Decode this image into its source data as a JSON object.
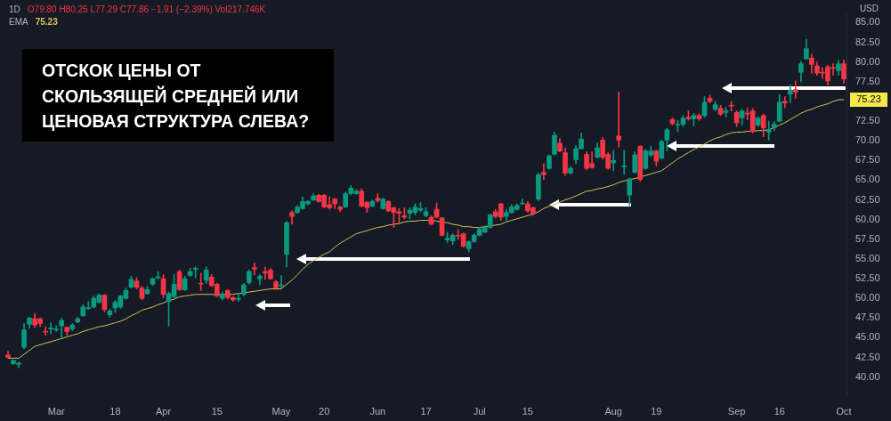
{
  "chart_data": {
    "type": "candlestick",
    "title": "ОТСКОК ЦЕНЫ ОТ СКОЛЬЗЯЩЕЙ СРЕДНЕЙ ИЛИ ЦЕНОВАЯ СТРУКТУРА СЛЕВА?",
    "annotations": [
      "1D",
      "O79.80 H80.25 L77.29 C77.86 −1.91 (−2.39%) Vol217.746K",
      "75.23",
      "USD",
      "75.23"
    ],
    "categories": [
      null,
      null,
      null,
      null,
      null,
      null,
      null,
      null,
      null,
      "Mar",
      null,
      null,
      null,
      null,
      null,
      null,
      null,
      null,
      null,
      null,
      "18",
      null,
      null,
      null,
      null,
      null,
      null,
      null,
      null,
      "Apr",
      null,
      null,
      null,
      null,
      null,
      null,
      null,
      null,
      null,
      "15",
      null,
      null,
      null,
      null,
      null,
      null,
      null,
      null,
      null,
      null,
      null,
      "May",
      null,
      null,
      null,
      null,
      null,
      null,
      null,
      "20",
      null,
      null,
      null,
      null,
      null,
      null,
      null,
      null,
      null,
      "Jun",
      null,
      null,
      null,
      null,
      null,
      null,
      null,
      null,
      "17",
      null,
      null,
      null,
      null,
      null,
      null,
      null,
      null,
      null,
      "Jul",
      null,
      null,
      null,
      null,
      null,
      null,
      null,
      null,
      "15",
      null,
      null,
      null,
      null,
      null,
      null,
      null,
      null,
      null,
      null,
      null,
      null,
      null,
      null,
      null,
      "Aug",
      null,
      null,
      null,
      null,
      null,
      null,
      null,
      "19",
      null,
      null,
      null,
      null,
      null,
      null,
      null,
      null,
      null,
      null,
      null,
      null,
      null,
      null,
      "Sep",
      null,
      null,
      null,
      null,
      null,
      null,
      null,
      "16",
      null,
      null,
      null,
      null,
      null,
      null,
      null,
      null,
      null,
      null,
      null,
      "Oct"
    ],
    "ohlc": [
      [
        42.8,
        43.3,
        42.4,
        42.5
      ],
      [
        41.7,
        42.2,
        41.6,
        42.1
      ],
      [
        41.6,
        41.9,
        41.2,
        41.8
      ],
      [
        43.8,
        46.8,
        43.6,
        46.0
      ],
      [
        46.7,
        47.6,
        46.2,
        47.5
      ],
      [
        47.4,
        48.1,
        46.3,
        46.6
      ],
      [
        47.4,
        47.5,
        46.4,
        46.8
      ],
      [
        45.8,
        46.4,
        45.3,
        45.7
      ],
      [
        46.1,
        46.9,
        45.5,
        46.2
      ],
      [
        46.0,
        46.5,
        45.8,
        46.1
      ],
      [
        46.5,
        47.5,
        44.9,
        47.2
      ],
      [
        46.3,
        46.4,
        45.3,
        45.8
      ],
      [
        46.1,
        46.8,
        45.9,
        46.6
      ],
      [
        47.0,
        47.6,
        46.9,
        47.4
      ],
      [
        47.8,
        49.2,
        47.7,
        48.9
      ],
      [
        48.7,
        49.6,
        48.6,
        48.8
      ],
      [
        48.9,
        50.3,
        48.8,
        50.0
      ],
      [
        49.5,
        50.6,
        49.4,
        50.4
      ],
      [
        50.4,
        50.5,
        48.3,
        48.6
      ],
      [
        47.9,
        48.6,
        47.6,
        48.4
      ],
      [
        48.8,
        49.7,
        48.2,
        49.5
      ],
      [
        48.9,
        50.4,
        48.7,
        50.3
      ],
      [
        50.0,
        51.3,
        49.9,
        51.0
      ],
      [
        51.4,
        52.8,
        51.3,
        52.4
      ],
      [
        52.2,
        52.6,
        51.2,
        51.4
      ],
      [
        51.3,
        51.5,
        49.8,
        50.0
      ],
      [
        50.6,
        51.5,
        50.5,
        51.1
      ],
      [
        51.8,
        52.6,
        51.6,
        52.5
      ],
      [
        52.6,
        53.4,
        52.4,
        52.7
      ],
      [
        52.5,
        53.0,
        50.1,
        50.5
      ],
      [
        49.6,
        50.8,
        46.5,
        50.6
      ],
      [
        50.2,
        53.0,
        50.1,
        51.8
      ],
      [
        53.4,
        53.6,
        51.0,
        51.1
      ],
      [
        51.1,
        52.8,
        51.0,
        52.5
      ],
      [
        52.9,
        53.8,
        52.8,
        53.4
      ],
      [
        53.7,
        54.0,
        52.6,
        53.8
      ],
      [
        51.9,
        53.2,
        51.0,
        51.8
      ],
      [
        52.3,
        54.0,
        51.9,
        53.6
      ],
      [
        52.7,
        53.0,
        51.5,
        51.6
      ],
      [
        51.8,
        51.9,
        50.2,
        50.3
      ],
      [
        50.0,
        50.8,
        49.8,
        50.5
      ],
      [
        51.0,
        51.1,
        49.9,
        50.1
      ],
      [
        50.1,
        50.2,
        49.6,
        49.8
      ],
      [
        49.9,
        50.6,
        49.6,
        50.0
      ],
      [
        50.5,
        51.9,
        50.3,
        51.7
      ],
      [
        52.0,
        53.6,
        51.8,
        53.4
      ],
      [
        53.9,
        54.5,
        53.0,
        53.7
      ],
      [
        52.5,
        53.0,
        51.7,
        52.8
      ],
      [
        53.4,
        54.0,
        52.4,
        53.2
      ],
      [
        53.6,
        53.8,
        52.4,
        52.5
      ],
      [
        52.1,
        52.3,
        51.1,
        51.3
      ],
      [
        51.6,
        52.9,
        51.3,
        51.7
      ],
      [
        55.6,
        59.8,
        54.0,
        59.6
      ],
      [
        60.9,
        61.1,
        59.4,
        60.4
      ],
      [
        60.9,
        61.8,
        60.8,
        61.6
      ],
      [
        61.4,
        62.9,
        61.3,
        62.3
      ],
      [
        62.0,
        62.4,
        61.8,
        62.3
      ],
      [
        62.5,
        63.3,
        62.4,
        63.0
      ],
      [
        63.1,
        63.2,
        62.2,
        62.3
      ],
      [
        63.1,
        63.2,
        61.5,
        61.6
      ],
      [
        61.9,
        62.9,
        61.3,
        61.5
      ],
      [
        62.6,
        62.7,
        61.4,
        62.0
      ],
      [
        61.6,
        61.7,
        61.0,
        61.3
      ],
      [
        61.6,
        63.5,
        61.5,
        63.3
      ],
      [
        63.3,
        64.3,
        63.1,
        64.0
      ],
      [
        63.3,
        63.8,
        63.2,
        63.6
      ],
      [
        63.6,
        63.9,
        61.6,
        61.7
      ],
      [
        62.2,
        62.3,
        60.9,
        61.5
      ],
      [
        61.7,
        62.5,
        61.6,
        62.3
      ],
      [
        62.7,
        63.3,
        62.2,
        62.4
      ],
      [
        61.4,
        62.7,
        61.3,
        62.6
      ],
      [
        62.3,
        62.4,
        61.0,
        61.1
      ],
      [
        61.5,
        61.6,
        59.0,
        60.9
      ],
      [
        61.0,
        61.4,
        59.5,
        60.8
      ],
      [
        60.5,
        61.5,
        60.1,
        60.3
      ],
      [
        60.8,
        61.5,
        60.1,
        61.2
      ],
      [
        60.9,
        62.0,
        60.6,
        61.6
      ],
      [
        61.2,
        62.2,
        61.0,
        61.4
      ],
      [
        60.5,
        61.5,
        60.3,
        61.0
      ],
      [
        60.3,
        60.5,
        59.3,
        59.4
      ],
      [
        61.3,
        62.1,
        60.2,
        60.3
      ],
      [
        60.2,
        60.3,
        57.9,
        58.0
      ],
      [
        57.4,
        58.4,
        57.1,
        57.6
      ],
      [
        57.3,
        58.2,
        56.8,
        58.0
      ],
      [
        58.0,
        58.7,
        57.5,
        57.9
      ],
      [
        58.2,
        58.3,
        56.5,
        56.6
      ],
      [
        56.3,
        57.3,
        55.9,
        57.2
      ],
      [
        57.2,
        58.2,
        57.1,
        58.0
      ],
      [
        58.0,
        59.0,
        57.9,
        58.8
      ],
      [
        58.4,
        59.2,
        58.3,
        59.0
      ],
      [
        59.0,
        60.7,
        58.9,
        60.6
      ],
      [
        61.0,
        61.3,
        60.2,
        60.4
      ],
      [
        62.0,
        62.1,
        59.9,
        60.3
      ],
      [
        60.4,
        61.3,
        59.9,
        60.9
      ],
      [
        60.9,
        61.9,
        60.8,
        61.6
      ],
      [
        61.3,
        62.0,
        61.2,
        61.8
      ],
      [
        62.0,
        62.6,
        61.9,
        62.1
      ],
      [
        62.0,
        62.3,
        60.9,
        61.1
      ],
      [
        61.5,
        61.6,
        60.5,
        60.7
      ],
      [
        62.6,
        65.9,
        62.4,
        65.7
      ],
      [
        66.0,
        67.1,
        65.1,
        65.7
      ],
      [
        66.5,
        68.2,
        66.4,
        68.1
      ],
      [
        68.3,
        71.1,
        68.2,
        70.7
      ],
      [
        69.7,
        70.3,
        68.6,
        68.7
      ],
      [
        68.5,
        69.1,
        65.6,
        65.9
      ],
      [
        65.9,
        66.7,
        65.8,
        66.5
      ],
      [
        67.6,
        69.4,
        67.1,
        69.0
      ],
      [
        69.0,
        71.0,
        68.9,
        70.2
      ],
      [
        68.3,
        68.6,
        66.3,
        66.5
      ],
      [
        67.1,
        68.6,
        66.5,
        66.6
      ],
      [
        67.9,
        69.8,
        67.8,
        69.1
      ],
      [
        70.1,
        70.4,
        67.7,
        67.9
      ],
      [
        68.3,
        68.5,
        66.4,
        66.5
      ],
      [
        67.2,
        68.8,
        66.2,
        67.5
      ],
      [
        70.6,
        76.2,
        69.2,
        70.1
      ],
      [
        66.7,
        68.8,
        65.8,
        66.8
      ],
      [
        63.1,
        65.3,
        61.8,
        65.1
      ],
      [
        66.0,
        68.6,
        65.9,
        68.2
      ],
      [
        69.3,
        69.4,
        64.9,
        65.1
      ],
      [
        66.5,
        68.9,
        66.4,
        68.7
      ],
      [
        68.2,
        69.3,
        68.0,
        68.7
      ],
      [
        68.7,
        68.8,
        66.8,
        67.4
      ],
      [
        67.8,
        70.1,
        67.7,
        69.9
      ],
      [
        70.1,
        71.6,
        68.7,
        71.4
      ],
      [
        72.7,
        72.9,
        72.0,
        72.2
      ],
      [
        72.0,
        72.6,
        71.2,
        72.1
      ],
      [
        72.1,
        73.2,
        71.8,
        72.9
      ],
      [
        73.0,
        73.8,
        72.6,
        72.8
      ],
      [
        72.8,
        73.5,
        71.9,
        73.2
      ],
      [
        73.2,
        73.4,
        72.6,
        72.8
      ],
      [
        73.2,
        75.6,
        73.0,
        74.9
      ],
      [
        75.4,
        75.8,
        74.8,
        75.0
      ],
      [
        74.0,
        75.0,
        73.8,
        74.6
      ],
      [
        74.1,
        74.5,
        73.2,
        73.4
      ],
      [
        73.6,
        74.2,
        73.0,
        73.8
      ],
      [
        74.5,
        75.0,
        73.8,
        74.4
      ],
      [
        73.6,
        73.8,
        71.8,
        72.3
      ],
      [
        72.9,
        74.0,
        72.0,
        73.8
      ],
      [
        73.5,
        74.1,
        72.7,
        73.4
      ],
      [
        73.8,
        74.1,
        71.0,
        71.2
      ],
      [
        72.0,
        73.1,
        71.8,
        72.9
      ],
      [
        73.2,
        73.4,
        70.5,
        71.6
      ],
      [
        71.1,
        72.5,
        70.1,
        71.4
      ],
      [
        71.6,
        72.4,
        71.3,
        72.1
      ],
      [
        72.5,
        75.9,
        72.4,
        74.9
      ],
      [
        75.0,
        75.6,
        74.2,
        74.8
      ],
      [
        75.9,
        77.1,
        74.9,
        76.4
      ],
      [
        76.5,
        77.6,
        75.4,
        76.2
      ],
      [
        78.7,
        80.1,
        77.5,
        79.8
      ],
      [
        80.4,
        82.9,
        80.3,
        81.7
      ],
      [
        80.5,
        81.0,
        78.6,
        79.7
      ],
      [
        79.5,
        80.0,
        78.3,
        78.6
      ],
      [
        78.7,
        79.3,
        77.9,
        78.6
      ],
      [
        79.4,
        79.6,
        77.1,
        77.6
      ],
      [
        79.3,
        79.8,
        78.3,
        79.2
      ],
      [
        78.9,
        80.2,
        78.3,
        79.8
      ],
      [
        79.8,
        80.25,
        77.29,
        77.86
      ]
    ],
    "colors": [
      "#f23645",
      "#089981",
      "#089981",
      "#089981",
      "#089981",
      "#f23645",
      "#f23645",
      "#f23645",
      "#089981",
      "#089981",
      "#089981",
      "#f23645",
      "#089981",
      "#089981",
      "#089981",
      "#089981",
      "#089981",
      "#089981",
      "#f23645",
      "#089981",
      "#089981",
      "#089981",
      "#089981",
      "#089981",
      "#f23645",
      "#f23645",
      "#089981",
      "#089981",
      "#089981",
      "#f23645",
      "#089981",
      "#089981",
      "#f23645",
      "#089981",
      "#089981",
      "#089981",
      "#f23645",
      "#089981",
      "#f23645",
      "#f23645",
      "#089981",
      "#f23645",
      "#f23645",
      "#089981",
      "#089981",
      "#089981",
      "#f23645",
      "#089981",
      "#f23645",
      "#f23645",
      "#f23645",
      "#089981",
      "#089981",
      "#f23645",
      "#089981",
      "#089981",
      "#089981",
      "#089981",
      "#f23645",
      "#f23645",
      "#f23645",
      "#f23645",
      "#f23645",
      "#089981",
      "#089981",
      "#089981",
      "#f23645",
      "#f23645",
      "#089981",
      "#f23645",
      "#089981",
      "#f23645",
      "#f23645",
      "#f23645",
      "#f23645",
      "#089981",
      "#089981",
      "#089981",
      "#089981",
      "#f23645",
      "#f23645",
      "#f23645",
      "#089981",
      "#089981",
      "#f23645",
      "#f23645",
      "#089981",
      "#089981",
      "#089981",
      "#089981",
      "#089981",
      "#f23645",
      "#f23645",
      "#089981",
      "#089981",
      "#089981",
      "#089981",
      "#f23645",
      "#f23645",
      "#089981",
      "#f23645",
      "#089981",
      "#089981",
      "#f23645",
      "#f23645",
      "#089981",
      "#089981",
      "#089981",
      "#f23645",
      "#f23645",
      "#089981",
      "#f23645",
      "#f23645",
      "#089981",
      "#f23645",
      "#089981",
      "#089981",
      "#089981",
      "#f23645",
      "#089981",
      "#089981",
      "#f23645",
      "#089981",
      "#089981",
      "#f23645",
      "#089981",
      "#089981",
      "#f23645",
      "#089981",
      "#f23645",
      "#089981",
      "#f23645",
      "#089981",
      "#f23645",
      "#089981",
      "#f23645",
      "#f23645",
      "#089981",
      "#f23645",
      "#f23645",
      "#089981",
      "#f23645",
      "#089981",
      "#089981",
      "#089981",
      "#f23645",
      "#089981",
      "#f23645",
      "#089981",
      "#089981",
      "#f23645",
      "#f23645",
      "#f23645",
      "#f23645",
      "#f23645",
      "#089981",
      "#f23645"
    ],
    "series": [
      {
        "name": "EMA",
        "type": "line",
        "color": "#d4c35a",
        "values": [
          42.4,
          42.4,
          42.4,
          42.9,
          43.4,
          43.9,
          44.1,
          44.3,
          44.5,
          44.7,
          44.9,
          45.1,
          45.3,
          45.5,
          45.8,
          46.0,
          46.2,
          46.4,
          46.5,
          46.7,
          46.9,
          47.1,
          47.4,
          47.8,
          48.1,
          48.5,
          48.7,
          48.9,
          49.2,
          49.4,
          49.7,
          49.9,
          50.2,
          50.3,
          50.4,
          50.5,
          50.5,
          50.5,
          50.5,
          50.5,
          50.5,
          50.5,
          50.5,
          50.6,
          50.7,
          50.8,
          50.9,
          51.0,
          51.1,
          51.2,
          51.2,
          51.2,
          51.8,
          52.3,
          53.0,
          53.7,
          54.3,
          54.8,
          55.2,
          55.6,
          55.9,
          56.5,
          57.0,
          57.4,
          57.8,
          58.2,
          58.4,
          58.6,
          58.8,
          59.0,
          59.1,
          59.3,
          59.4,
          59.5,
          59.7,
          59.8,
          59.8,
          59.9,
          59.9,
          59.9,
          59.8,
          59.7,
          59.6,
          59.4,
          59.3,
          59.1,
          59.1,
          59.0,
          59.0,
          59.1,
          59.2,
          59.3,
          59.4,
          59.7,
          59.9,
          60.1,
          60.3,
          60.5,
          60.7,
          61.0,
          61.4,
          61.7,
          61.9,
          62.2,
          62.5,
          62.7,
          63.0,
          63.3,
          63.6,
          63.7,
          63.9,
          64.0,
          64.2,
          64.4,
          64.7,
          64.9,
          65.1,
          65.2,
          65.4,
          65.6,
          65.8,
          66.0,
          66.2,
          66.7,
          67.2,
          67.7,
          68.1,
          68.5,
          68.9,
          69.2,
          69.6,
          70.0,
          70.3,
          70.5,
          70.8,
          71.0,
          71.1,
          71.1,
          71.2,
          71.2,
          71.3,
          71.3,
          71.4,
          71.7,
          72.0,
          72.3,
          72.7,
          73.1,
          73.5,
          73.8,
          74.0,
          74.3,
          74.5,
          74.7,
          75.0,
          75.2,
          75.23
        ]
      }
    ],
    "ylim": [
      37.5,
      86
    ],
    "yticks": [
      {
        "value": 40,
        "label": "40.00"
      },
      {
        "value": 42.5,
        "label": "42.50"
      },
      {
        "value": 45,
        "label": "45.00"
      },
      {
        "value": 47.5,
        "label": "47.50"
      },
      {
        "value": 50,
        "label": "50.00"
      },
      {
        "value": 52.5,
        "label": "52.50"
      },
      {
        "value": 55,
        "label": "55.00"
      },
      {
        "value": 57.5,
        "label": "57.50"
      },
      {
        "value": 60,
        "label": "60.00"
      },
      {
        "value": 62.5,
        "label": "62.50"
      },
      {
        "value": 65,
        "label": "65.00"
      },
      {
        "value": 67.5,
        "label": "67.50"
      },
      {
        "value": 70,
        "label": "70.00"
      },
      {
        "value": 72.5,
        "label": "72.50"
      },
      {
        "value": 77.5,
        "label": "77.50"
      },
      {
        "value": 80,
        "label": "80.00"
      },
      {
        "value": 82.5,
        "label": "82.50"
      },
      {
        "value": 85,
        "label": "85.00"
      }
    ],
    "legend": "top left"
  }
}
